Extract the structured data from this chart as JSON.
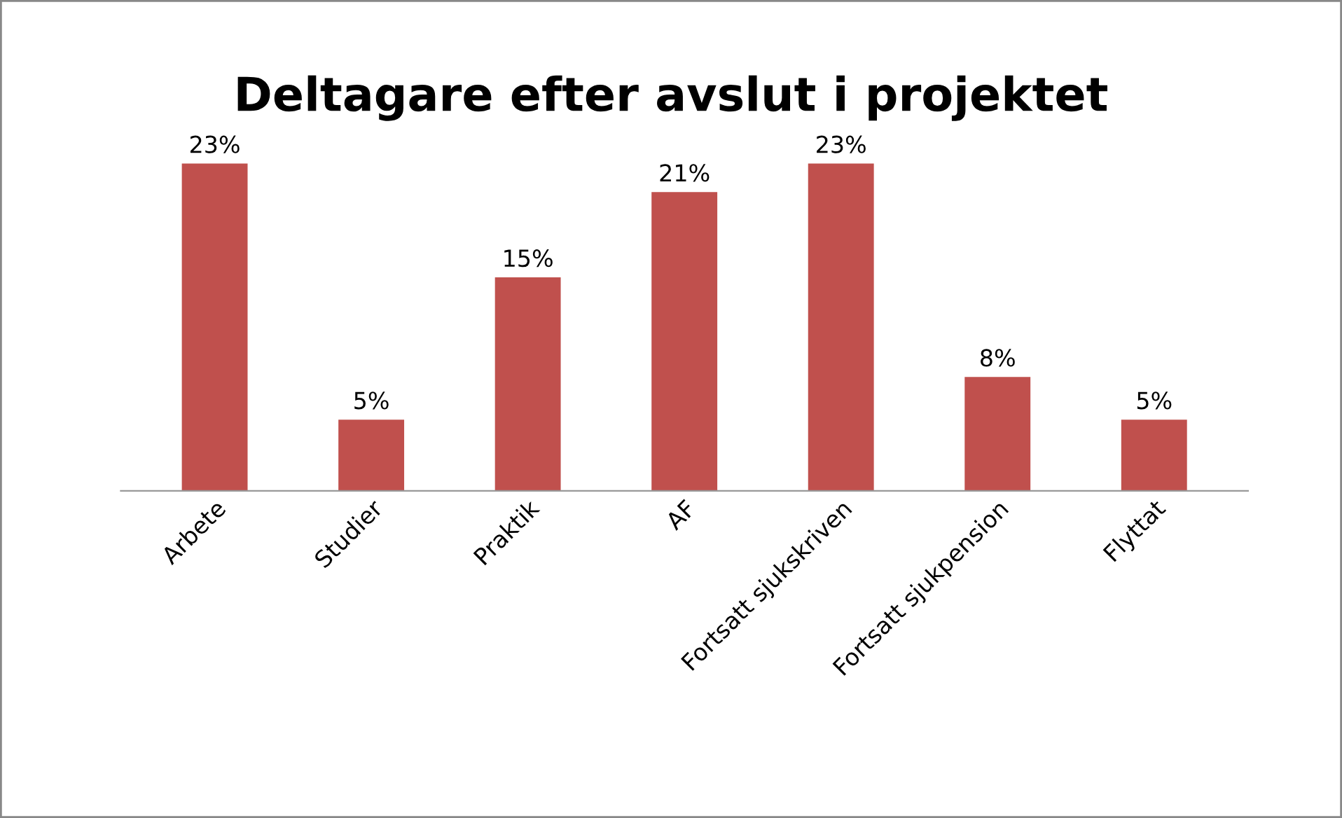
{
  "chart_data": {
    "type": "bar",
    "title": "Deltagare efter avslut i projektet",
    "categories": [
      "Arbete",
      "Studier",
      "Praktik",
      "AF",
      "Fortsatt sjukskriven",
      "Fortsatt sjukpension",
      "Flyttat"
    ],
    "values": [
      23,
      5,
      15,
      21,
      23,
      8,
      5
    ],
    "value_labels": [
      "23%",
      "5%",
      "15%",
      "21%",
      "23%",
      "8%",
      "5%"
    ],
    "color": "#c0504d",
    "grid": false,
    "legend": false
  }
}
